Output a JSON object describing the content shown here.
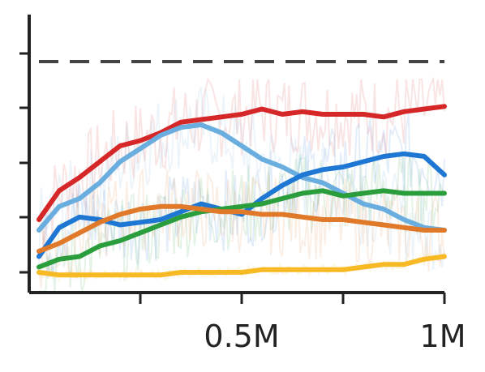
{
  "chart_data": {
    "type": "line",
    "title": "",
    "xlabel": "",
    "ylabel": "",
    "xlim": [
      0,
      1000000
    ],
    "ylim": [
      0,
      1
    ],
    "x_ticks": [
      250000,
      500000,
      750000,
      1000000
    ],
    "x_tick_labels": [
      "",
      "0.5M",
      "",
      "1M"
    ],
    "y_ticks": [
      0,
      0.2,
      0.4,
      0.6,
      0.8,
      1.0
    ],
    "y_tick_labels": [
      "",
      "",
      "",
      "",
      "",
      ""
    ],
    "reference_line": {
      "y": 0.8,
      "style": "dashed",
      "color": "#444444"
    },
    "grid": false,
    "legend": "none",
    "series": [
      {
        "color": "#d62728",
        "x": [
          0,
          50000,
          100000,
          150000,
          200000,
          250000,
          300000,
          350000,
          400000,
          450000,
          500000,
          550000,
          600000,
          650000,
          700000,
          750000,
          800000,
          850000,
          900000,
          950000,
          1000000
        ],
        "values": [
          0.2,
          0.31,
          0.36,
          0.42,
          0.48,
          0.5,
          0.53,
          0.57,
          0.58,
          0.59,
          0.6,
          0.62,
          0.6,
          0.61,
          0.6,
          0.6,
          0.6,
          0.59,
          0.61,
          0.62,
          0.63
        ]
      },
      {
        "color": "#6aaee0",
        "x": [
          0,
          50000,
          100000,
          150000,
          200000,
          250000,
          300000,
          350000,
          400000,
          450000,
          500000,
          550000,
          600000,
          650000,
          700000,
          750000,
          800000,
          850000,
          900000,
          950000,
          1000000
        ],
        "values": [
          0.16,
          0.25,
          0.28,
          0.34,
          0.42,
          0.47,
          0.52,
          0.55,
          0.56,
          0.53,
          0.48,
          0.43,
          0.4,
          0.36,
          0.34,
          0.3,
          0.26,
          0.24,
          0.2,
          0.17,
          0.16
        ]
      },
      {
        "color": "#1f77d4",
        "x": [
          0,
          50000,
          100000,
          150000,
          200000,
          250000,
          300000,
          350000,
          400000,
          450000,
          500000,
          550000,
          600000,
          650000,
          700000,
          750000,
          800000,
          850000,
          900000,
          950000,
          1000000
        ],
        "values": [
          0.06,
          0.17,
          0.21,
          0.2,
          0.18,
          0.19,
          0.2,
          0.23,
          0.26,
          0.24,
          0.22,
          0.28,
          0.33,
          0.37,
          0.39,
          0.4,
          0.42,
          0.44,
          0.45,
          0.44,
          0.37
        ]
      },
      {
        "color": "#2a9d3c",
        "x": [
          0,
          50000,
          100000,
          150000,
          200000,
          250000,
          300000,
          350000,
          400000,
          450000,
          500000,
          550000,
          600000,
          650000,
          700000,
          750000,
          800000,
          850000,
          900000,
          950000,
          1000000
        ],
        "values": [
          0.02,
          0.05,
          0.06,
          0.1,
          0.12,
          0.15,
          0.18,
          0.21,
          0.23,
          0.24,
          0.25,
          0.26,
          0.28,
          0.3,
          0.31,
          0.29,
          0.3,
          0.31,
          0.3,
          0.3,
          0.3
        ]
      },
      {
        "color": "#e07a2a",
        "x": [
          0,
          50000,
          100000,
          150000,
          200000,
          250000,
          300000,
          350000,
          400000,
          450000,
          500000,
          550000,
          600000,
          650000,
          700000,
          750000,
          800000,
          850000,
          900000,
          950000,
          1000000
        ],
        "values": [
          0.08,
          0.11,
          0.15,
          0.19,
          0.22,
          0.24,
          0.25,
          0.25,
          0.24,
          0.23,
          0.23,
          0.22,
          0.22,
          0.21,
          0.2,
          0.2,
          0.19,
          0.18,
          0.17,
          0.16,
          0.16
        ]
      },
      {
        "color": "#f7b924",
        "x": [
          0,
          50000,
          100000,
          150000,
          200000,
          250000,
          300000,
          350000,
          400000,
          450000,
          500000,
          550000,
          600000,
          650000,
          700000,
          750000,
          800000,
          850000,
          900000,
          950000,
          1000000
        ],
        "values": [
          0.0,
          -0.01,
          -0.01,
          -0.01,
          -0.01,
          -0.01,
          -0.01,
          0.0,
          0.0,
          0.0,
          0.0,
          0.01,
          0.01,
          0.01,
          0.01,
          0.01,
          0.02,
          0.03,
          0.03,
          0.05,
          0.06
        ]
      }
    ]
  }
}
